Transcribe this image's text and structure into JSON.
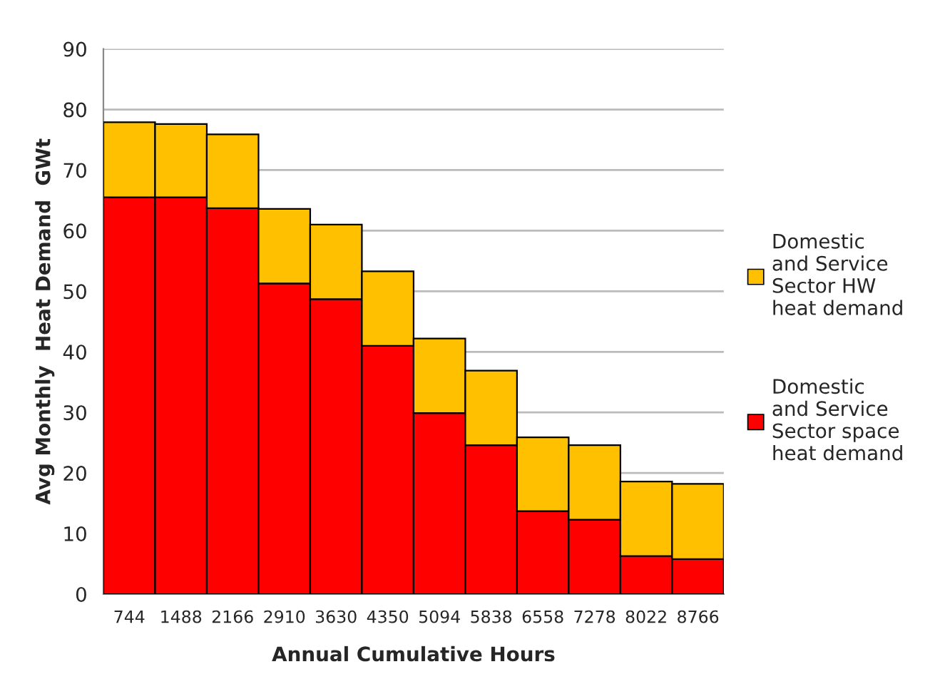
{
  "chart_data": {
    "type": "bar",
    "stacked": true,
    "xlabel": "Annual Cumulative Hours",
    "ylabel": "Avg Monthly  Heat Demand  GWt",
    "categories": [
      "744",
      "1488",
      "2166",
      "2910",
      "3630",
      "4350",
      "5094",
      "5838",
      "6558",
      "7278",
      "8022",
      "8766"
    ],
    "series": [
      {
        "name": "Domestic and Service Sector space heat demand",
        "color": "#ff0000",
        "values": [
          65.5,
          65.5,
          63.7,
          51.3,
          48.7,
          41.0,
          29.9,
          24.6,
          13.7,
          12.3,
          6.3,
          5.8
        ]
      },
      {
        "name": "Domestic and Service Sector HW heat demand",
        "color": "#ffc000",
        "values": [
          12.4,
          12.1,
          12.2,
          12.3,
          12.3,
          12.3,
          12.3,
          12.3,
          12.2,
          12.3,
          12.3,
          12.4
        ]
      }
    ],
    "ylim": [
      0,
      90
    ],
    "yticks": [
      0,
      10,
      20,
      30,
      40,
      50,
      60,
      70,
      80,
      90
    ],
    "grid": "y",
    "legend": "right"
  }
}
